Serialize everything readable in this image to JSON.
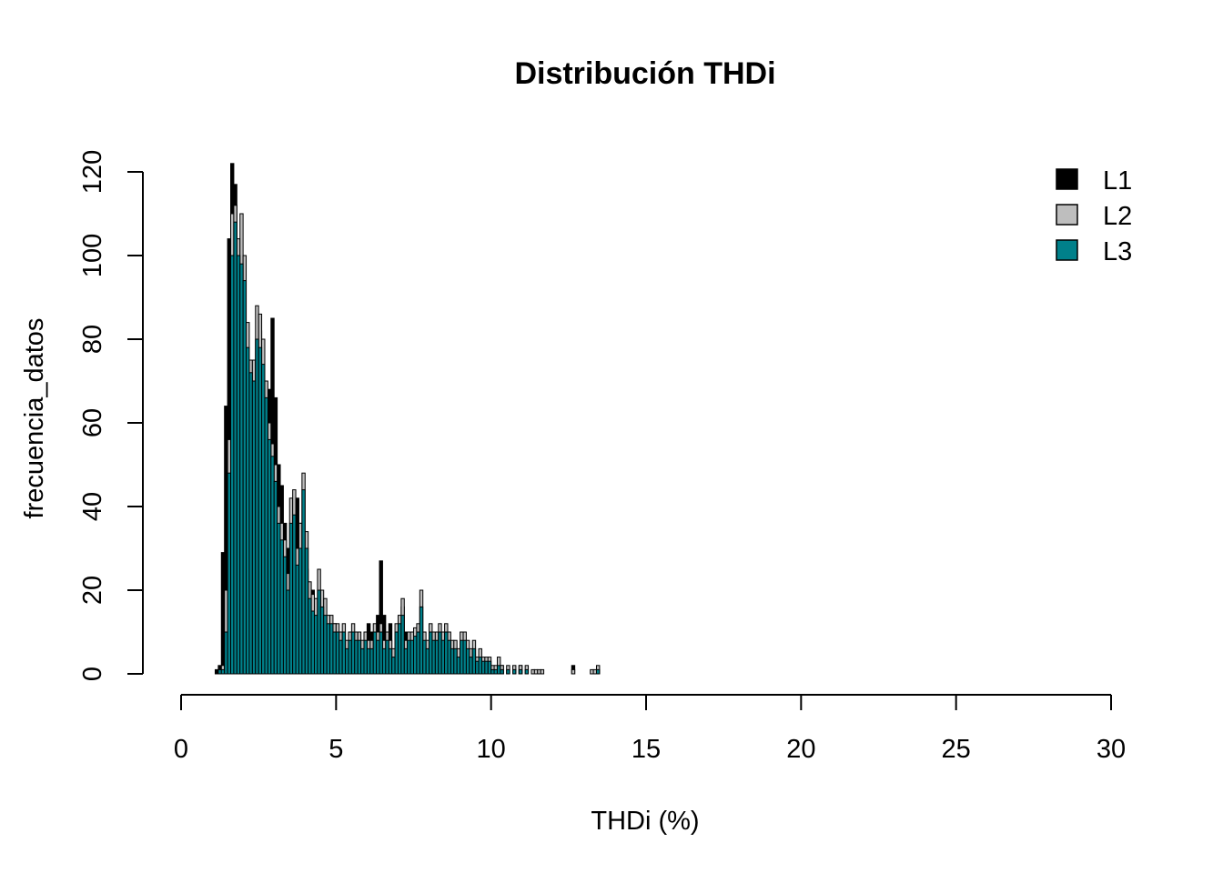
{
  "chart_data": {
    "type": "bar",
    "title": "Distribución THDi",
    "xlabel": "THDi (%)",
    "ylabel": "frecuencia_datos",
    "xlim": [
      0,
      30
    ],
    "ylim": [
      0,
      120
    ],
    "x_ticks": [
      "0",
      "5",
      "10",
      "15",
      "20",
      "25",
      "30"
    ],
    "y_ticks": [
      "0",
      "20",
      "40",
      "60",
      "80",
      "100",
      "120"
    ],
    "grid": false,
    "legend_position": "top-right",
    "bin_start": 1.1,
    "bin_width": 0.1,
    "series": [
      {
        "name": "L1",
        "color": "#000000",
        "values": [
          1,
          2,
          29,
          64,
          104,
          122,
          117,
          98,
          90,
          72,
          73,
          68,
          74,
          62,
          82,
          72,
          56,
          68,
          85,
          66,
          50,
          45,
          36,
          30,
          28,
          38,
          42,
          36,
          30,
          25,
          20,
          20,
          14,
          10,
          12,
          8,
          10,
          8,
          12,
          6,
          6,
          10,
          4,
          8,
          6,
          4,
          10,
          6,
          8,
          12,
          10,
          4,
          14,
          27,
          14,
          10,
          12,
          4,
          8,
          12,
          16,
          10,
          8,
          6,
          4,
          8,
          4,
          8,
          6,
          2,
          6,
          8,
          4,
          4,
          2,
          6,
          4,
          2,
          2,
          2,
          6,
          2,
          4,
          4,
          2,
          2,
          2,
          2,
          2,
          0,
          0,
          0,
          2,
          0,
          0,
          0,
          0,
          0,
          2,
          0,
          0,
          0,
          0,
          0,
          0,
          0,
          0,
          0,
          0,
          0,
          0,
          0,
          0,
          0,
          0,
          2,
          0,
          0,
          0,
          0,
          0,
          0,
          0,
          0,
          0,
          0,
          0,
          0,
          0,
          0,
          0,
          0,
          0,
          0,
          0,
          0,
          0,
          0,
          0,
          0,
          0,
          0,
          0,
          0,
          0,
          0,
          0,
          0,
          0,
          0
        ]
      },
      {
        "name": "L2",
        "color": "#bebebe",
        "values": [
          0,
          1,
          2,
          20,
          56,
          110,
          112,
          104,
          110,
          100,
          84,
          75,
          75,
          88,
          86,
          80,
          70,
          60,
          55,
          50,
          40,
          36,
          32,
          24,
          42,
          44,
          30,
          36,
          48,
          34,
          22,
          19,
          18,
          25,
          20,
          18,
          14,
          14,
          12,
          12,
          10,
          12,
          8,
          10,
          12,
          10,
          10,
          8,
          10,
          8,
          8,
          12,
          10,
          12,
          8,
          10,
          8,
          6,
          12,
          14,
          18,
          8,
          10,
          10,
          11,
          12,
          20,
          10,
          8,
          12,
          10,
          10,
          12,
          10,
          12,
          10,
          8,
          8,
          6,
          10,
          10,
          8,
          6,
          8,
          4,
          6,
          4,
          4,
          4,
          2,
          2,
          4,
          2,
          0,
          2,
          0,
          2,
          0,
          2,
          0,
          2,
          0,
          1,
          1,
          1,
          1,
          0,
          0,
          0,
          0,
          0,
          0,
          0,
          0,
          0,
          1,
          0,
          0,
          0,
          0,
          0,
          1,
          1,
          2,
          0,
          0,
          0,
          0,
          0,
          0,
          0,
          0,
          0,
          0,
          0,
          0,
          0,
          0,
          0,
          0,
          0,
          0,
          0,
          0,
          0,
          0,
          0,
          0,
          0,
          0
        ]
      },
      {
        "name": "L3",
        "color": "#00808a",
        "values": [
          0,
          1,
          1,
          10,
          48,
          100,
          108,
          100,
          98,
          94,
          78,
          72,
          70,
          80,
          78,
          74,
          66,
          56,
          52,
          46,
          36,
          32,
          28,
          20,
          36,
          38,
          26,
          30,
          44,
          30,
          18,
          15,
          14,
          20,
          16,
          14,
          12,
          12,
          10,
          10,
          8,
          10,
          6,
          8,
          10,
          8,
          8,
          6,
          8,
          6,
          6,
          10,
          8,
          10,
          6,
          8,
          6,
          4,
          10,
          12,
          14,
          6,
          8,
          8,
          9,
          10,
          16,
          8,
          6,
          10,
          8,
          8,
          10,
          8,
          10,
          8,
          6,
          6,
          4,
          8,
          8,
          6,
          4,
          6,
          3,
          4,
          3,
          3,
          3,
          1,
          1,
          2,
          1,
          0,
          1,
          0,
          1,
          0,
          1,
          0,
          1,
          0,
          0,
          0,
          0,
          0,
          0,
          0,
          0,
          0,
          0,
          0,
          0,
          0,
          0,
          0,
          0,
          0,
          0,
          0,
          0,
          0,
          0,
          1,
          0,
          0,
          0,
          0,
          0,
          0,
          0,
          0,
          0,
          0,
          0,
          0,
          0,
          0,
          0,
          0,
          0,
          0,
          0,
          0,
          0,
          0,
          0,
          0,
          0,
          0
        ]
      }
    ]
  }
}
